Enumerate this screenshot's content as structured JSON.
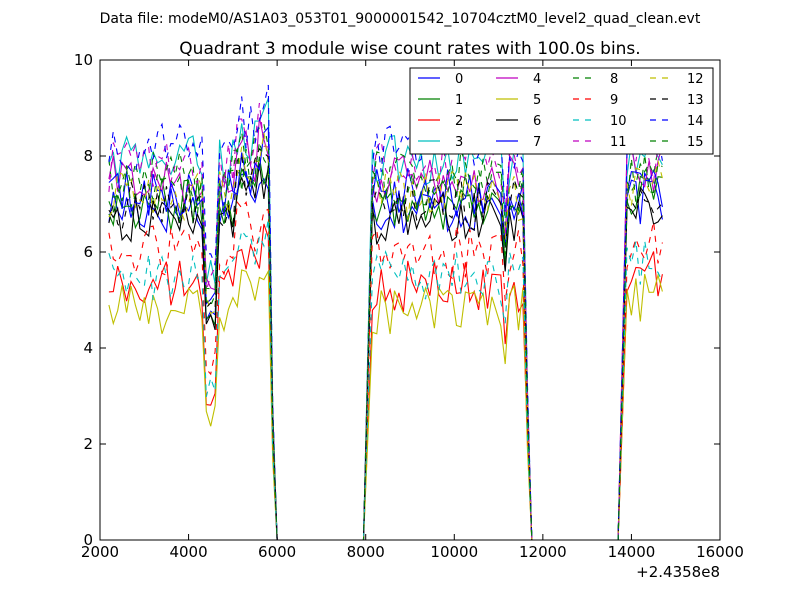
{
  "figure": {
    "suptitle": "Data file: modeM0/AS1A03_053T01_9000001542_10704cztM0_level2_quad_clean.evt",
    "title": "Quadrant 3 module wise count rates with 100.0s bins.",
    "x_offset_label": "+2.4358e8"
  },
  "chart_data": {
    "type": "line",
    "title": "Quadrant 3 module wise count rates with 100.0s bins.",
    "xlabel": "",
    "ylabel": "",
    "x_offset": 243580000,
    "xlim": [
      2000,
      16000
    ],
    "ylim": [
      0,
      10
    ],
    "xticks": [
      2000,
      4000,
      6000,
      8000,
      10000,
      12000,
      14000,
      16000
    ],
    "yticks": [
      0,
      2,
      4,
      6,
      8,
      10
    ],
    "xtick_labels": [
      "2000",
      "4000",
      "6000",
      "8000",
      "10000",
      "12000",
      "14000",
      "16000"
    ],
    "ytick_labels": [
      "0",
      "2",
      "4",
      "6",
      "8",
      "10"
    ],
    "grid": false,
    "legend_position": "top-right",
    "legend_columns": 4,
    "segments": [
      {
        "start": 2200,
        "end": 5800,
        "drop_end": 6000
      },
      {
        "rise_start": 7950,
        "start": 8150,
        "end": 10900
      },
      {
        "start": 11050,
        "end": 11550,
        "drop_end": 11750
      },
      {
        "rise_start": 13700,
        "start": 13900,
        "end": 14750
      }
    ],
    "dips": [
      4480,
      10950,
      11120
    ],
    "series": [
      {
        "name": "0",
        "color": "#0000ff",
        "dash": "solid",
        "level": 6.9
      },
      {
        "name": "1",
        "color": "#008000",
        "dash": "solid",
        "level": 7.0
      },
      {
        "name": "2",
        "color": "#ff0000",
        "dash": "solid",
        "level": 5.3
      },
      {
        "name": "3",
        "color": "#00bfbf",
        "dash": "solid",
        "level": 7.9
      },
      {
        "name": "4",
        "color": "#bf00bf",
        "dash": "solid",
        "level": 7.5
      },
      {
        "name": "5",
        "color": "#bfbf00",
        "dash": "solid",
        "level": 4.8
      },
      {
        "name": "6",
        "color": "#000000",
        "dash": "solid",
        "level": 6.7
      },
      {
        "name": "7",
        "color": "#0000ff",
        "dash": "solid",
        "level": 7.2
      },
      {
        "name": "8",
        "color": "#008000",
        "dash": "dashed",
        "level": 7.6
      },
      {
        "name": "9",
        "color": "#ff0000",
        "dash": "dashed",
        "level": 6.0
      },
      {
        "name": "10",
        "color": "#00bfbf",
        "dash": "dashed",
        "level": 5.5
      },
      {
        "name": "11",
        "color": "#bf00bf",
        "dash": "dashed",
        "level": 7.8
      },
      {
        "name": "12",
        "color": "#bfbf00",
        "dash": "dashed",
        "level": 7.2
      },
      {
        "name": "13",
        "color": "#000000",
        "dash": "dashed",
        "level": 7.0
      },
      {
        "name": "14",
        "color": "#0000ff",
        "dash": "dashed",
        "level": 8.2
      },
      {
        "name": "15",
        "color": "#008000",
        "dash": "dashed",
        "level": 7.3
      }
    ]
  }
}
